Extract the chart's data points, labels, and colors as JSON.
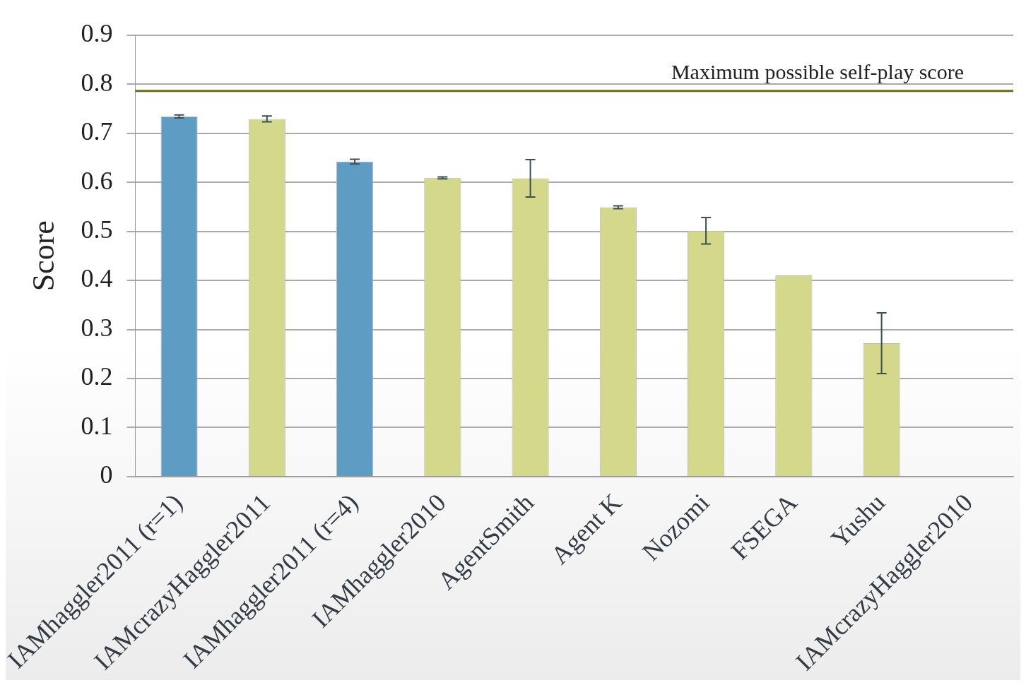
{
  "chart_data": {
    "type": "bar",
    "ylabel": "Score",
    "categories": [
      "IAMhaggler2011 (r=1)",
      "IAMcrazyHaggler2011",
      "IAMhaggler2011 (r=4)",
      "IAMhaggler2010",
      "AgentSmith",
      "Agent K",
      "Nozomi",
      "FSEGA",
      "Yushu",
      "IAMcrazyHaggler2010"
    ],
    "values": [
      0.734,
      0.729,
      0.642,
      0.609,
      0.608,
      0.549,
      0.501,
      0.41,
      0.272,
      0
    ],
    "errors": [
      0.003,
      0.006,
      0.005,
      0.002,
      0.038,
      0.003,
      0.027,
      null,
      0.062,
      null
    ],
    "colors": [
      "#5f9cc3",
      "#d4d88a",
      "#5f9cc3",
      "#d4d88a",
      "#d4d88a",
      "#d4d88a",
      "#d4d88a",
      "#d4d88a",
      "#d4d88a",
      "#d4d88a"
    ],
    "ylim": [
      0,
      0.9
    ],
    "yticks": [
      0,
      0.1,
      0.2,
      0.3,
      0.4,
      0.5,
      0.6,
      0.7,
      0.8,
      0.9
    ],
    "grid": "y",
    "ref_lines": [
      {
        "axis": "y",
        "value": 0.786,
        "label": "Maximum possible self-play score",
        "color": "#6b6b1e"
      }
    ],
    "legend": false
  }
}
